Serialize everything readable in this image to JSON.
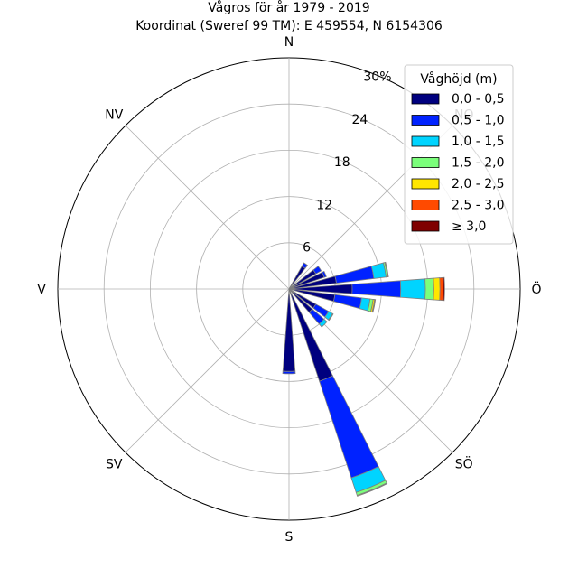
{
  "chart_data": {
    "type": "windrose",
    "title": "Vågros för år 1979 - 2019",
    "subtitle": "Koordinat (Sweref 99 TM): E 459554, N 6154306",
    "directions": [
      "N",
      "NO",
      "Ö",
      "SÖ",
      "S",
      "SV",
      "V",
      "NV"
    ],
    "radial_ticks": [
      "6",
      "12",
      "18",
      "24",
      "30%"
    ],
    "radial_max": 30,
    "unit": "%",
    "legend_title": "Våghöjd (m)",
    "bins": [
      {
        "label": "0,0 - 0,5",
        "color": "#00007f"
      },
      {
        "label": "0,5 - 1,0",
        "color": "#0022ff"
      },
      {
        "label": "1,0 - 1,5",
        "color": "#00d4ff"
      },
      {
        "label": "1,5 - 2,0",
        "color": "#7bff7b"
      },
      {
        "label": "2,0 - 2,5",
        "color": "#ffe600"
      },
      {
        "label": "2,5 - 3,0",
        "color": "#ff4a00"
      },
      {
        "label": "≥ 3,0",
        "color": "#7f0000"
      }
    ],
    "sectors": [
      {
        "angle": 0,
        "values": [
          0,
          0,
          0,
          0,
          0,
          0,
          0
        ]
      },
      {
        "angle": 22.5,
        "values": [
          0,
          0,
          0,
          0,
          0,
          0,
          0
        ]
      },
      {
        "angle": 45,
        "values": [
          0,
          0,
          0,
          0,
          0,
          0,
          0
        ]
      },
      {
        "angle": 67.5,
        "values": [
          4.8,
          0.3,
          0,
          0,
          0,
          0,
          0
        ]
      },
      {
        "angle": 78.75,
        "values": [
          6.2,
          4.9,
          1.6,
          0.2,
          0.1,
          0,
          0
        ]
      },
      {
        "angle": 90,
        "values": [
          8.2,
          6.3,
          3.2,
          1.1,
          0.8,
          0.4,
          0.2
        ]
      },
      {
        "angle": 101.25,
        "values": [
          6.0,
          3.5,
          1.1,
          0.4,
          0.2,
          0.1,
          0
        ]
      },
      {
        "angle": 123.75,
        "values": [
          4.0,
          1.9,
          0.6,
          0.1,
          0,
          0,
          0
        ]
      },
      {
        "angle": 157.5,
        "values": [
          12.6,
          13.2,
          2.0,
          0.4,
          0.1,
          0,
          0
        ]
      },
      {
        "angle": 180,
        "values": [
          10.7,
          0.3,
          0,
          0,
          0,
          0,
          0
        ]
      },
      {
        "angle": 202.5,
        "values": [
          0,
          0,
          0,
          0,
          0,
          0,
          0
        ]
      },
      {
        "angle": 225,
        "values": [
          0,
          0,
          0,
          0,
          0,
          0,
          0
        ]
      },
      {
        "angle": 247.5,
        "values": [
          0,
          0,
          0,
          0,
          0,
          0,
          0
        ]
      },
      {
        "angle": 270,
        "values": [
          0,
          0,
          0,
          0,
          0,
          0,
          0
        ]
      },
      {
        "angle": 292.5,
        "values": [
          0,
          0,
          0,
          0,
          0,
          0,
          0
        ]
      },
      {
        "angle": 315,
        "values": [
          0,
          0,
          0,
          0,
          0,
          0,
          0
        ]
      },
      {
        "angle": 337.5,
        "values": [
          0,
          0,
          0,
          0,
          0,
          0,
          0
        ]
      },
      {
        "angle": 11.25,
        "values": [
          0,
          0,
          0,
          0,
          0,
          0,
          0
        ]
      },
      {
        "angle": 33.75,
        "values": [
          3.4,
          0.5,
          0,
          0,
          0,
          0,
          0
        ]
      },
      {
        "angle": 56.25,
        "values": [
          4.0,
          0.8,
          0,
          0,
          0,
          0,
          0
        ]
      },
      {
        "angle": 135,
        "values": [
          4.0,
          2.0,
          0.5,
          0,
          0,
          0,
          0
        ]
      },
      {
        "angle": 168.75,
        "values": [
          0,
          0,
          0,
          0,
          0,
          0,
          0
        ]
      }
    ],
    "grid": true,
    "legend_position": "top-right"
  }
}
